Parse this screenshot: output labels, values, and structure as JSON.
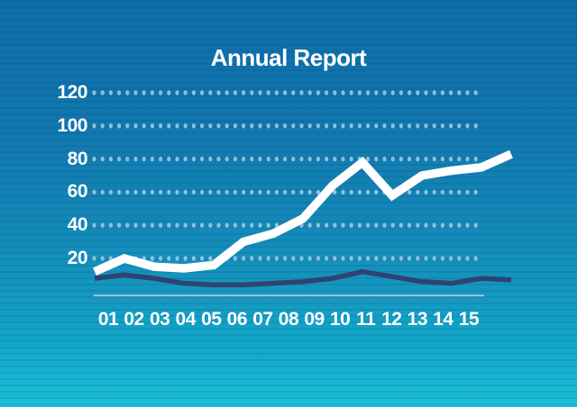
{
  "title": "Annual Report",
  "colors": {
    "background_top": "#0e6da8",
    "background_bottom": "#1cbfd8",
    "primary_line": "#ffffff",
    "secondary_line": "#2d4372",
    "grid_dot": "#a3c9e2",
    "axis_line_light": "#9ccde6",
    "axis_line_dash": "#47799f",
    "label_text": "#ffffff"
  },
  "chart_data": {
    "type": "line",
    "title": "Annual Report",
    "categories": [
      "01",
      "02",
      "03",
      "04",
      "05",
      "06",
      "07",
      "08",
      "09",
      "10",
      "11",
      "12",
      "13",
      "14",
      "15"
    ],
    "y_ticks": [
      20,
      40,
      60,
      80,
      100,
      120
    ],
    "ylim": [
      0,
      130
    ],
    "grid": "dotted-horizontal-rows",
    "legend": "none",
    "xlabel": "",
    "ylabel": "",
    "series": [
      {
        "name": "primary",
        "color": "#ffffff",
        "values": [
          12,
          20,
          15,
          14,
          16,
          30,
          35,
          44,
          64,
          78,
          58,
          70,
          73,
          75,
          83
        ]
      },
      {
        "name": "secondary",
        "color": "#2d4372",
        "values": [
          8,
          10,
          8,
          5,
          4,
          4,
          5,
          6,
          8,
          12,
          9,
          6,
          5,
          8,
          7
        ]
      }
    ]
  }
}
